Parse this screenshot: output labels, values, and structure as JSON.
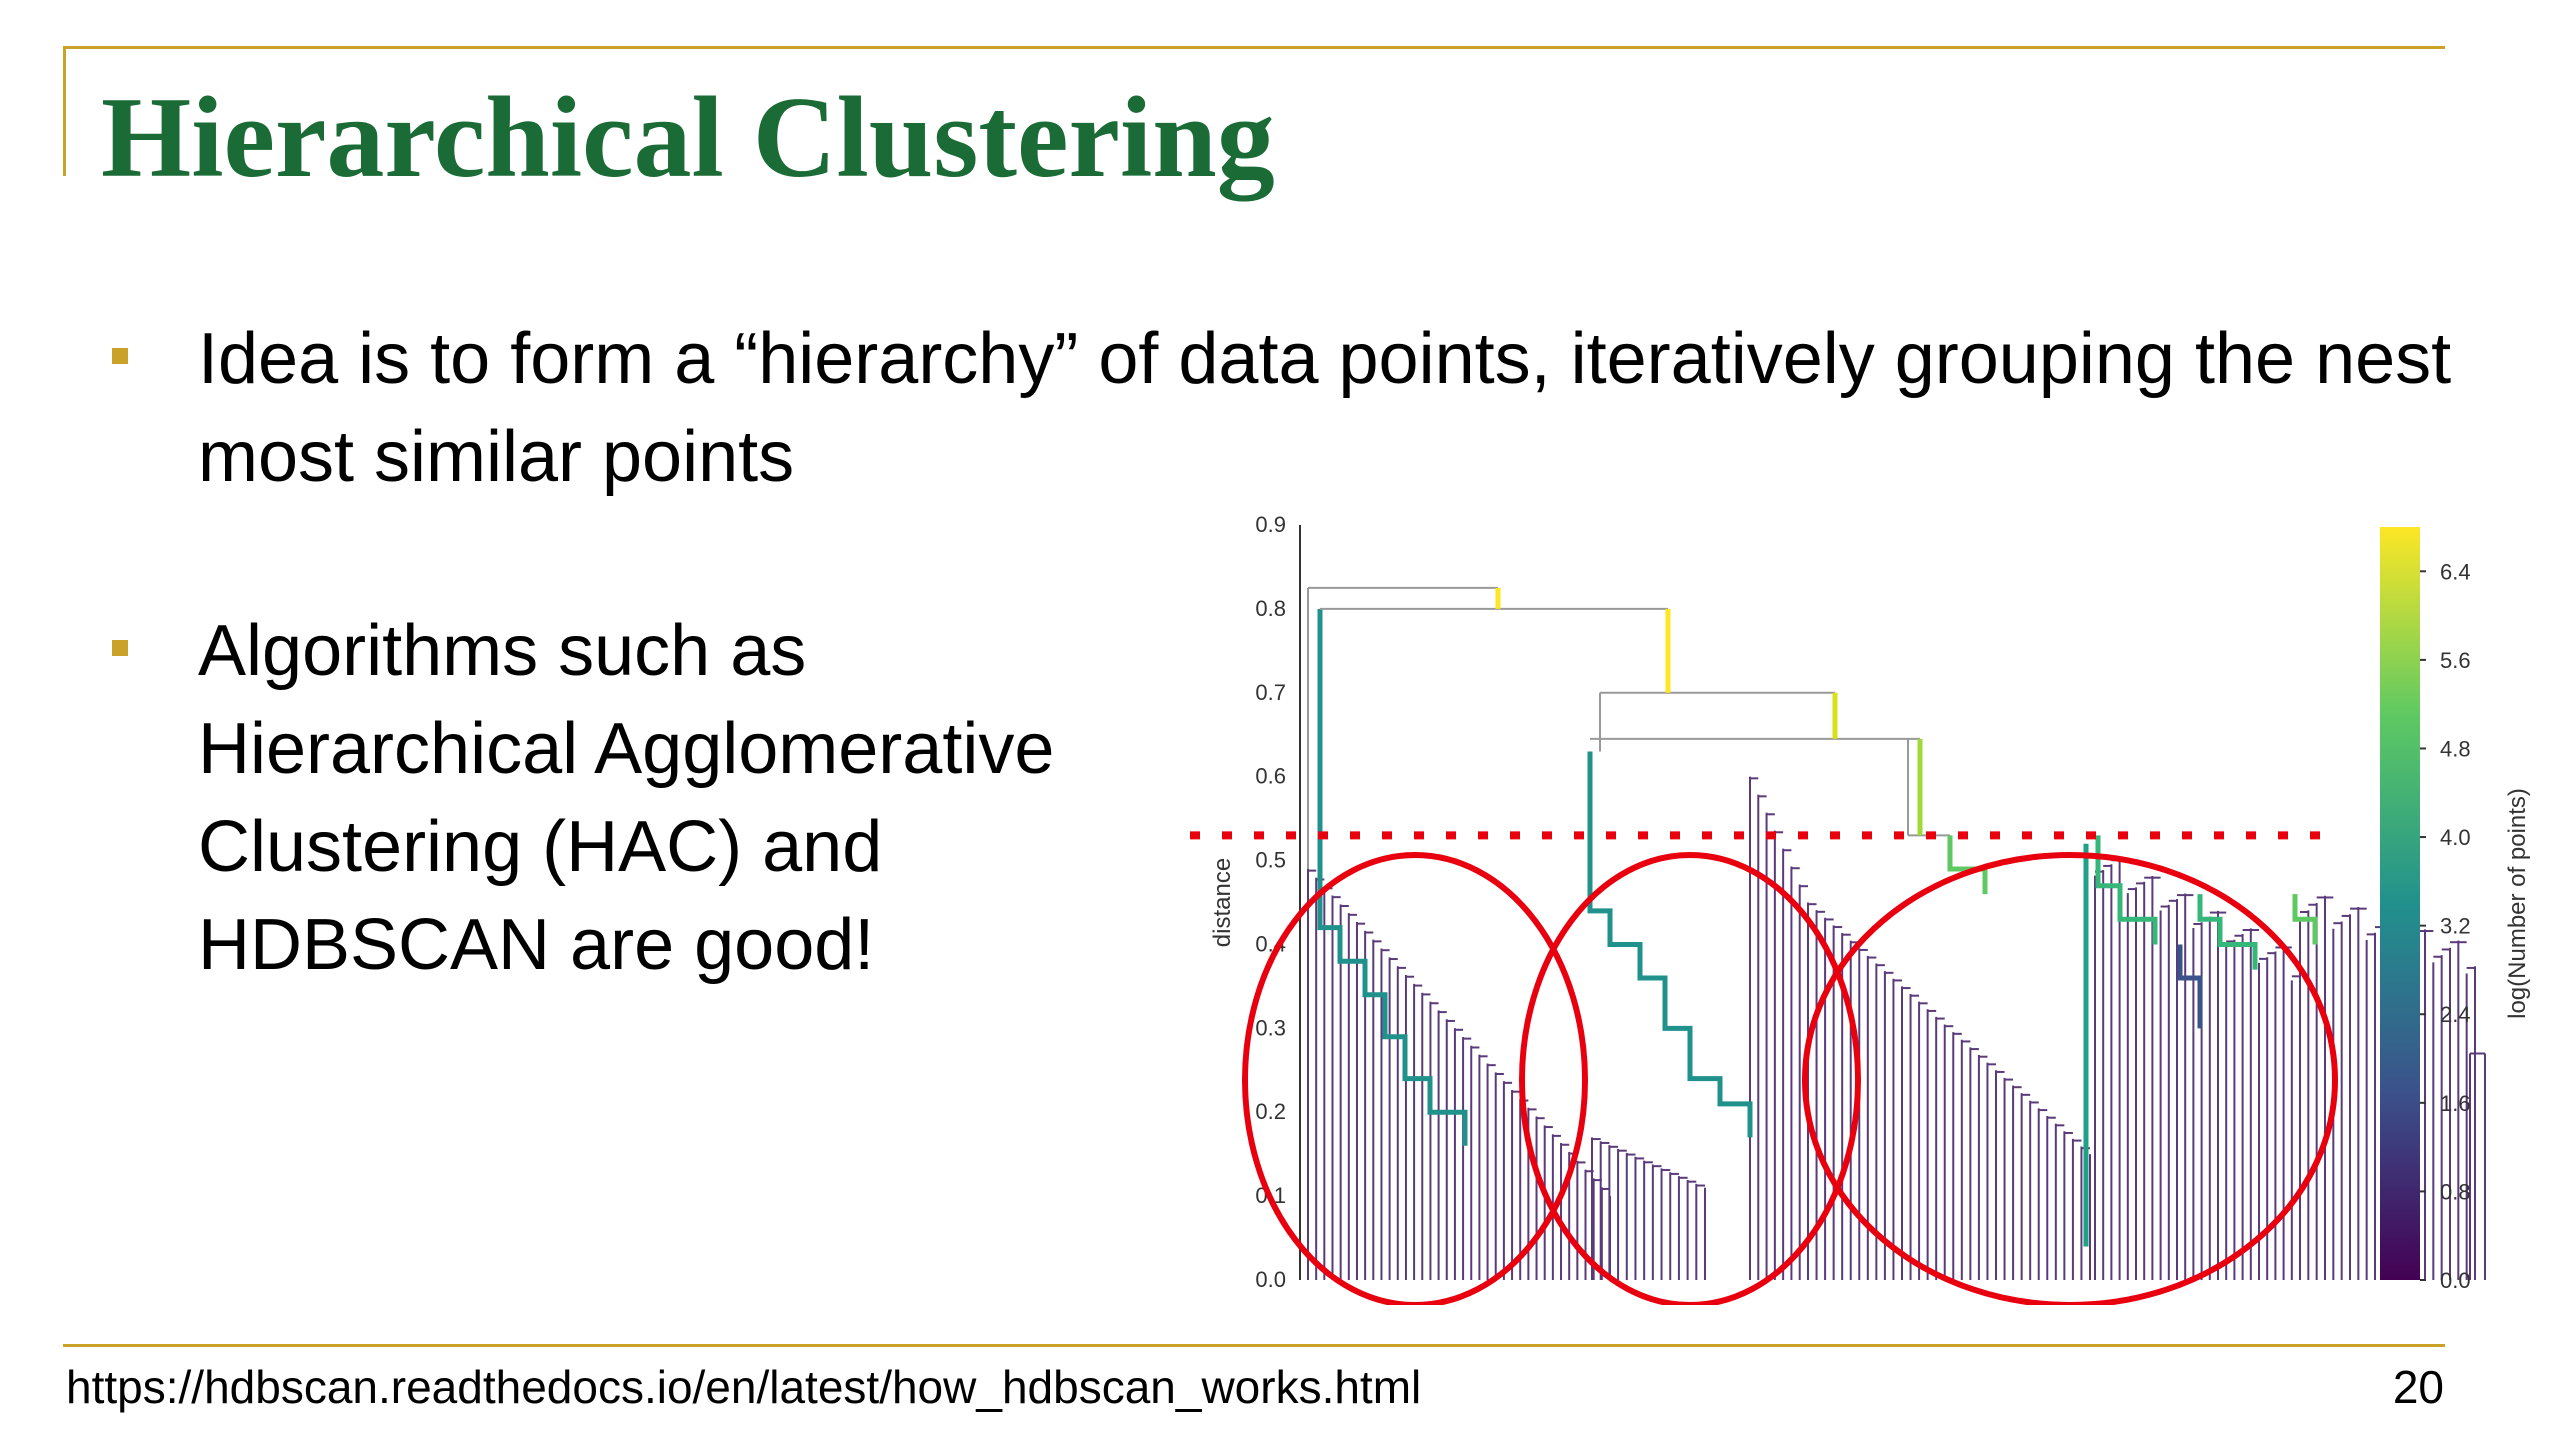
{
  "slide": {
    "title": "Hierarchical Clustering",
    "bullets": [
      "Idea is to form a “hierarchy” of data points, iteratively grouping the nest most similar points",
      "Algorithms such as Hierarchical Agglomerative Clustering (HAC) and HDBSCAN are good!"
    ],
    "footer_url": "https://hdbscan.readthedocs.io/en/latest/how_hdbscan_works.html",
    "page_number": "20"
  },
  "colors": {
    "title": "#1a6b35",
    "accent_rule": "#c9a227",
    "threshold_line": "#e8000f",
    "circle": "#e8000f"
  },
  "chart_data": {
    "type": "dendrogram",
    "ylabel": "distance",
    "ylim": [
      0.0,
      0.9
    ],
    "y_ticks": [
      "0.0",
      "0.1",
      "0.2",
      "0.3",
      "0.4",
      "0.5",
      "0.6",
      "0.7",
      "0.8",
      "0.9"
    ],
    "cut_threshold": 0.53,
    "merges_top": [
      {
        "level": 0.825,
        "note": "root"
      },
      {
        "level": 0.8
      },
      {
        "level": 0.7
      },
      {
        "level": 0.645
      },
      {
        "level": 0.53
      }
    ],
    "colorbar": {
      "label": "log(Number of points)",
      "range": [
        0.0,
        6.8
      ],
      "ticks": [
        "0.0",
        "0.8",
        "1.6",
        "2.4",
        "3.2",
        "4.0",
        "4.8",
        "5.6",
        "6.4"
      ],
      "colormap": "viridis"
    },
    "highlighted_clusters": 3
  }
}
